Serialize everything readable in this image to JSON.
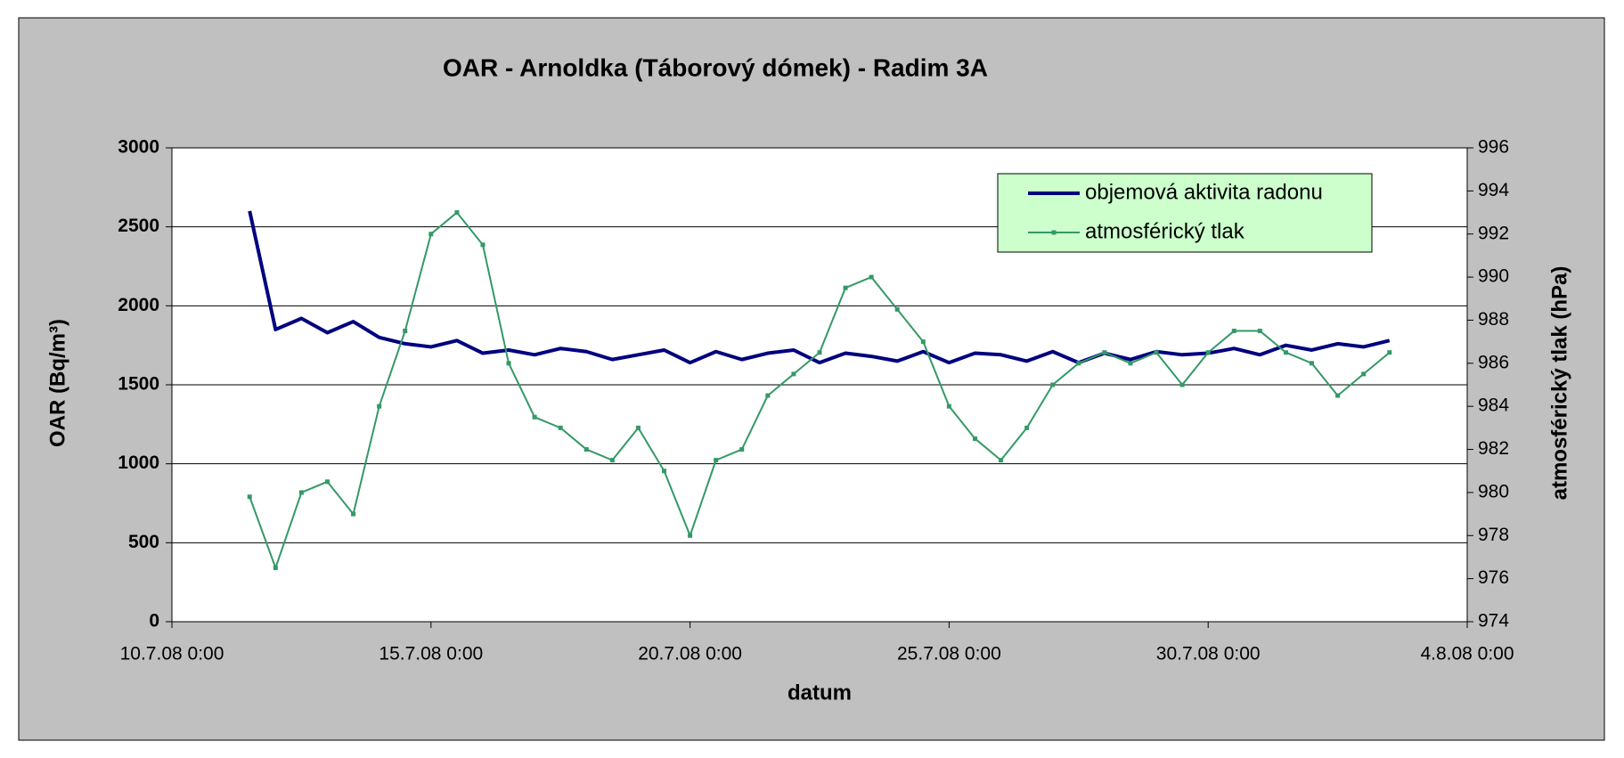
{
  "chart_data": {
    "type": "line",
    "title": "OAR - Arnoldka (Táborový dómek) - Radim 3A",
    "x_label": "datum",
    "y_label": "OAR (Bq/m³)",
    "y2_label": "atmosférický tlak (hPa)",
    "x": [
      "11.7.08 12:00",
      "12.7.08 0:00",
      "12.7.08 12:00",
      "13.7.08 0:00",
      "13.7.08 12:00",
      "14.7.08 0:00",
      "14.7.08 12:00",
      "15.7.08 0:00",
      "15.7.08 12:00",
      "16.7.08 0:00",
      "16.7.08 12:00",
      "17.7.08 0:00",
      "17.7.08 12:00",
      "18.7.08 0:00",
      "18.7.08 12:00",
      "19.7.08 0:00",
      "19.7.08 12:00",
      "20.7.08 0:00",
      "20.7.08 12:00",
      "21.7.08 0:00",
      "21.7.08 12:00",
      "22.7.08 0:00",
      "22.7.08 12:00",
      "23.7.08 0:00",
      "23.7.08 12:00",
      "24.7.08 0:00",
      "24.7.08 12:00",
      "25.7.08 0:00",
      "25.7.08 12:00",
      "26.7.08 0:00",
      "26.7.08 12:00",
      "27.7.08 0:00",
      "27.7.08 12:00",
      "28.7.08 0:00",
      "28.7.08 12:00",
      "29.7.08 0:00",
      "29.7.08 12:00",
      "30.7.08 0:00",
      "30.7.08 12:00",
      "31.7.08 0:00",
      "31.7.08 12:00",
      "1.8.08 0:00",
      "1.8.08 12:00",
      "2.8.08 0:00",
      "2.8.08 12:00"
    ],
    "series": [
      {
        "name": "objemová aktivita radonu",
        "color": "#000080",
        "values": [
          2600,
          1850,
          1920,
          1830,
          1900,
          1800,
          1760,
          1740,
          1780,
          1700,
          1720,
          1690,
          1730,
          1710,
          1660,
          1690,
          1720,
          1640,
          1710,
          1660,
          1700,
          1720,
          1640,
          1700,
          1680,
          1650,
          1710,
          1640,
          1700,
          1690,
          1650,
          1710,
          1640,
          1700,
          1660,
          1710,
          1690,
          1700,
          1730,
          1690,
          1750,
          1720,
          1760,
          1740,
          1780
        ],
        "values_extra": null
      },
      {
        "name": "atmosférický tlak",
        "color": "#339966",
        "axis": "y2",
        "values": [
          979.8,
          976.5,
          980,
          980.5,
          979,
          984,
          987.5,
          992,
          993,
          991.5,
          986,
          983.5,
          983,
          982,
          981.5,
          983,
          981,
          978,
          981.5,
          982,
          984.5,
          985.5,
          986.5,
          989.5,
          990,
          988.5,
          987,
          984,
          982.5,
          981.5,
          983,
          985,
          986,
          986.5,
          986,
          986.5,
          985,
          986.5,
          987.5,
          987.5,
          986.5,
          986,
          984.5,
          985.5,
          986.5
        ]
      }
    ],
    "xlim": [
      "10.7.08 0:00",
      "4.8.08 0:00"
    ],
    "xticks": [
      "10.7.08 0:00",
      "15.7.08 0:00",
      "20.7.08 0:00",
      "25.7.08 0:00",
      "30.7.08 0:00",
      "4.8.08 0:00"
    ],
    "ylim": [
      0,
      3000
    ],
    "yticks": [
      0,
      500,
      1000,
      1500,
      2000,
      2500,
      3000
    ],
    "y2lim": [
      974,
      996
    ],
    "y2ticks": [
      974,
      976,
      978,
      980,
      982,
      984,
      986,
      988,
      990,
      992,
      994,
      996
    ],
    "grid": true,
    "legend": "upper right"
  }
}
